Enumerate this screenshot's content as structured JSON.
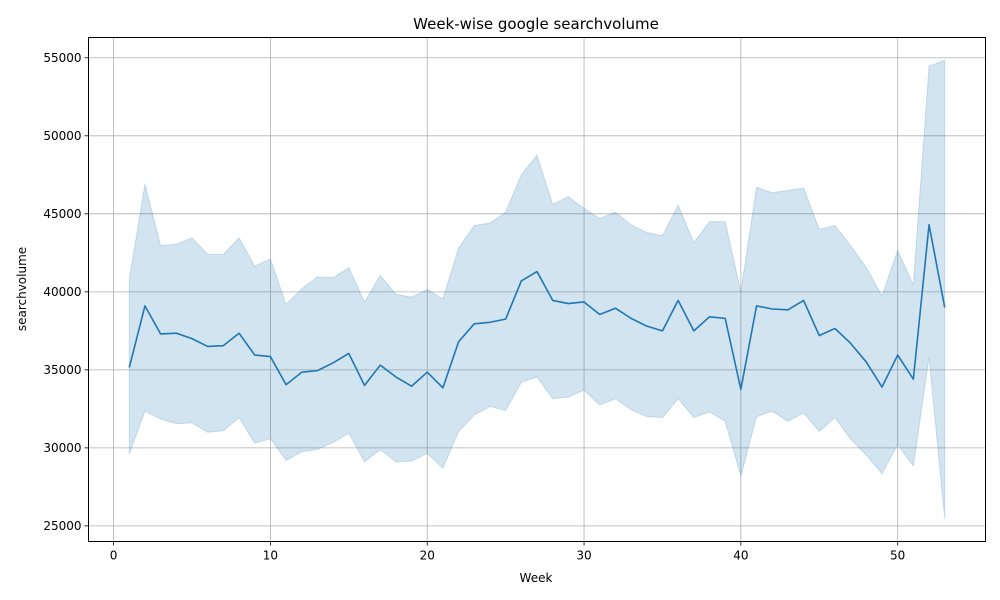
{
  "chart_data": {
    "type": "line",
    "title": "Week-wise google searchvolume",
    "xlabel": "Week",
    "ylabel": "searchvolume",
    "xlim": [
      -1.6,
      55.6
    ],
    "ylim": [
      24000,
      56300
    ],
    "xticks": [
      0,
      10,
      20,
      30,
      40,
      50
    ],
    "yticks": [
      25000,
      30000,
      35000,
      40000,
      45000,
      50000,
      55000
    ],
    "grid": true,
    "colors": {
      "line": "#1f77b4",
      "band": "#1f77b4",
      "grid": "#b0b0b0"
    },
    "series": [
      {
        "x": [
          1,
          2,
          3,
          4,
          5,
          6,
          7,
          8,
          9,
          10,
          11,
          12,
          13,
          14,
          15,
          16,
          17,
          18,
          19,
          20,
          21,
          22,
          23,
          24,
          25,
          26,
          27,
          28,
          29,
          30,
          31,
          32,
          33,
          34,
          35,
          36,
          37,
          38,
          39,
          40,
          41,
          42,
          43,
          44,
          45,
          46,
          47,
          48,
          49,
          50,
          51,
          52,
          53
        ],
        "values": [
          35150,
          39100,
          37300,
          37350,
          37000,
          36500,
          36550,
          37350,
          35950,
          35850,
          34050,
          34850,
          34950,
          35450,
          36050,
          34000,
          35300,
          34550,
          33950,
          34850,
          33850,
          36800,
          37950,
          38050,
          38250,
          40700,
          41300,
          39450,
          39250,
          39350,
          38550,
          38950,
          38300,
          37800,
          37500,
          39450,
          37500,
          38400,
          38300,
          33750,
          39100,
          38900,
          38850,
          39450,
          37200,
          37650,
          36700,
          35500,
          33900,
          35950,
          34400,
          44300,
          39000
        ],
        "upper": [
          40800,
          46900,
          42950,
          43050,
          43450,
          42400,
          42400,
          43450,
          41650,
          42100,
          39200,
          40200,
          40950,
          40900,
          41550,
          39350,
          41050,
          39850,
          39650,
          40150,
          39550,
          42800,
          44250,
          44400,
          45100,
          47500,
          48750,
          45600,
          46100,
          45350,
          44700,
          45100,
          44300,
          43800,
          43600,
          45550,
          43150,
          44500,
          44500,
          40000,
          46700,
          46350,
          46500,
          46650,
          44000,
          44250,
          42950,
          41550,
          39750,
          42650,
          40450,
          54450,
          54850
        ],
        "lower": [
          29600,
          32350,
          31850,
          31550,
          31600,
          31000,
          31100,
          31950,
          30300,
          30600,
          29200,
          29750,
          29900,
          30350,
          30950,
          29100,
          29900,
          29100,
          29150,
          29650,
          28700,
          31050,
          32100,
          32650,
          32400,
          34200,
          34550,
          33150,
          33250,
          33700,
          32750,
          33150,
          32450,
          32000,
          31950,
          33150,
          31950,
          32300,
          31700,
          28200,
          32000,
          32350,
          31700,
          32250,
          31050,
          31950,
          30550,
          29550,
          28350,
          30200,
          28850,
          35800,
          25450
        ]
      }
    ]
  }
}
